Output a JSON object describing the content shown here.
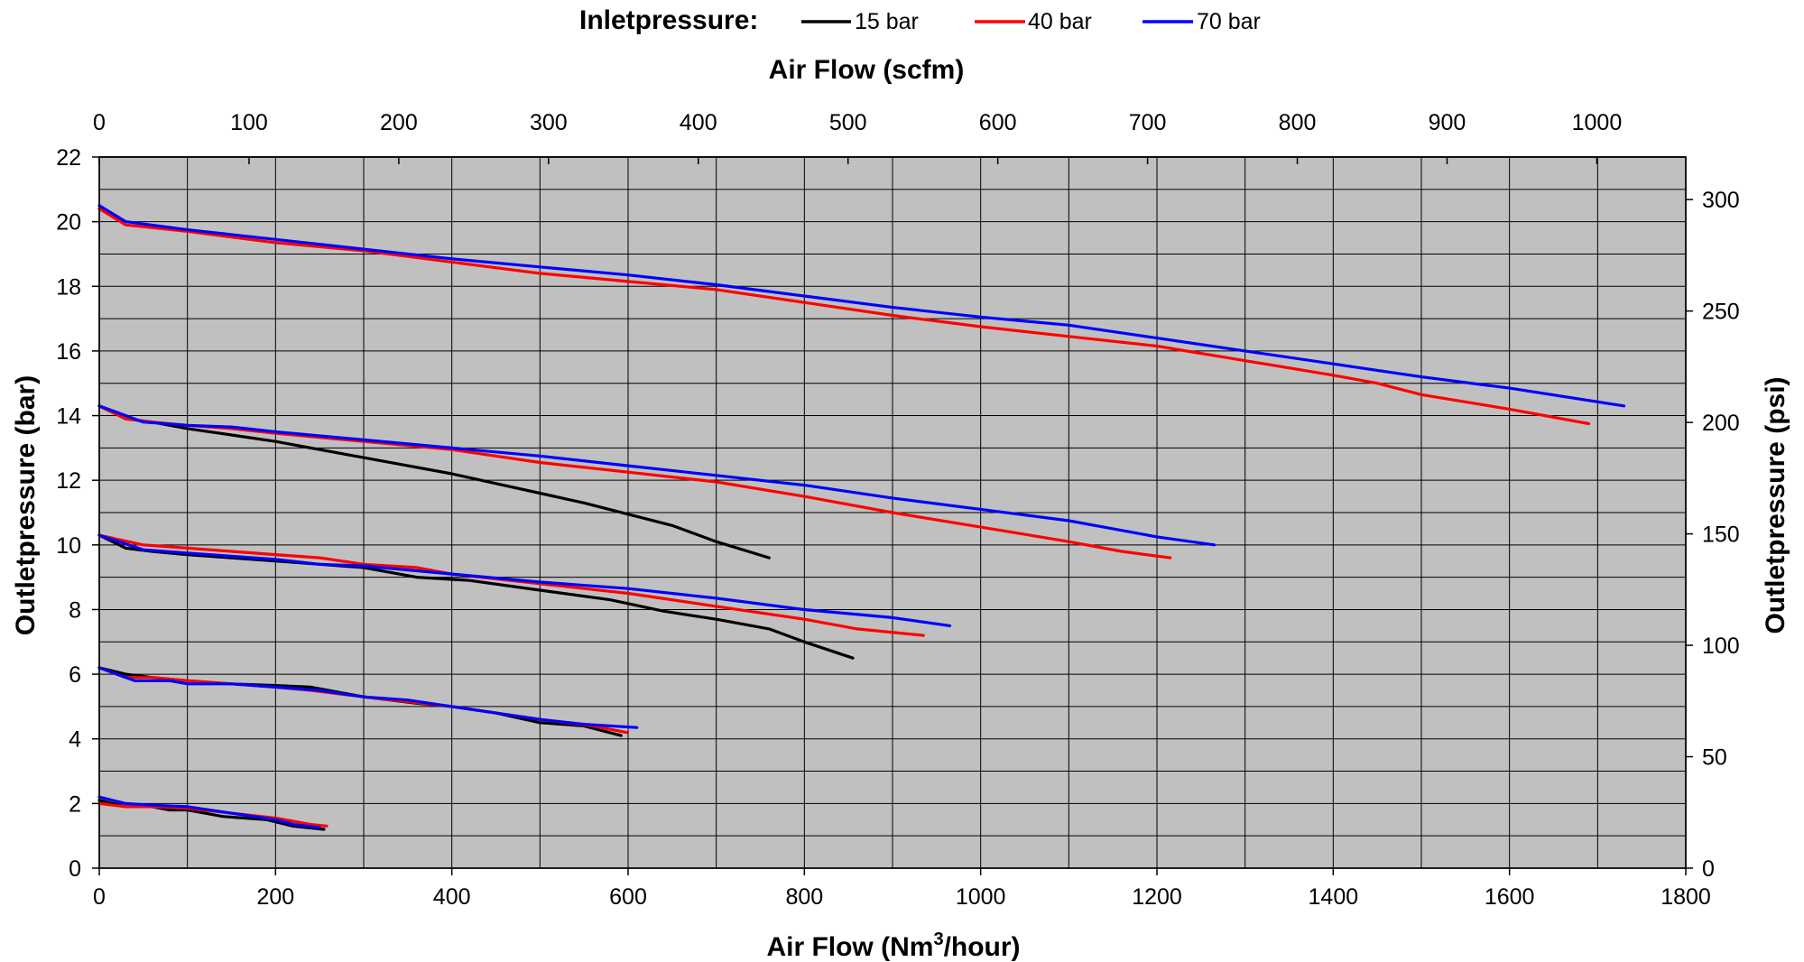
{
  "chart_data": {
    "type": "line",
    "legend": {
      "title": "Inletpressure:",
      "placement": "top-center",
      "entries": [
        {
          "label": "15 bar",
          "color": "#000000"
        },
        {
          "label": "40 bar",
          "color": "#ff0000"
        },
        {
          "label": "70 bar",
          "color": "#0000ff"
        }
      ]
    },
    "x_bottom": {
      "label_pre": "Air Flow (Nm",
      "label_sup": "3",
      "label_post": "/hour)",
      "range": [
        0,
        1800
      ],
      "ticks": [
        "0",
        "200",
        "400",
        "600",
        "800",
        "1000",
        "1200",
        "1400",
        "1600",
        "1800"
      ]
    },
    "x_top": {
      "label": "Air Flow (scfm)",
      "range": [
        0,
        1059.4
      ],
      "ticks": [
        "0",
        "100",
        "200",
        "300",
        "400",
        "500",
        "600",
        "700",
        "800",
        "900",
        "1000"
      ]
    },
    "y_left": {
      "label": "Outletpressure (bar)",
      "range": [
        0,
        22
      ],
      "ticks": [
        "0",
        "2",
        "4",
        "6",
        "8",
        "10",
        "12",
        "14",
        "16",
        "18",
        "20",
        "22"
      ]
    },
    "y_right": {
      "label": "Outletpressure (psi)",
      "range": [
        0,
        319.1
      ],
      "ticks": [
        "0",
        "50",
        "100",
        "150",
        "200",
        "250",
        "300"
      ]
    },
    "grid": true,
    "plot_background": "#c0c0c0",
    "series": [
      {
        "name": "15 bar",
        "color": "#000000",
        "points": [
          [
            0,
            2.1
          ],
          [
            30,
            1.9
          ],
          [
            60,
            1.9
          ],
          [
            80,
            1.8
          ],
          [
            100,
            1.8
          ],
          [
            140,
            1.6
          ],
          [
            190,
            1.5
          ],
          [
            220,
            1.3
          ],
          [
            255,
            1.2
          ]
        ]
      },
      {
        "name": "40 bar",
        "color": "#ff0000",
        "points": [
          [
            0,
            2.0
          ],
          [
            30,
            1.9
          ],
          [
            60,
            1.9
          ],
          [
            100,
            1.85
          ],
          [
            150,
            1.7
          ],
          [
            200,
            1.55
          ],
          [
            240,
            1.35
          ],
          [
            258,
            1.3
          ]
        ]
      },
      {
        "name": "70 bar",
        "color": "#0000ff",
        "points": [
          [
            0,
            2.2
          ],
          [
            30,
            2.0
          ],
          [
            60,
            1.95
          ],
          [
            100,
            1.9
          ],
          [
            150,
            1.7
          ],
          [
            200,
            1.5
          ],
          [
            220,
            1.35
          ],
          [
            250,
            1.25
          ]
        ]
      },
      {
        "name": "15 bar",
        "color": "#000000",
        "points": [
          [
            0,
            6.2
          ],
          [
            30,
            6.0
          ],
          [
            60,
            5.9
          ],
          [
            100,
            5.8
          ],
          [
            150,
            5.7
          ],
          [
            200,
            5.65
          ],
          [
            240,
            5.6
          ],
          [
            300,
            5.3
          ],
          [
            360,
            5.1
          ],
          [
            400,
            5.0
          ],
          [
            450,
            4.8
          ],
          [
            500,
            4.5
          ],
          [
            550,
            4.4
          ],
          [
            592,
            4.1
          ]
        ]
      },
      {
        "name": "40 bar",
        "color": "#ff0000",
        "points": [
          [
            0,
            6.2
          ],
          [
            30,
            5.9
          ],
          [
            60,
            5.9
          ],
          [
            100,
            5.8
          ],
          [
            150,
            5.7
          ],
          [
            200,
            5.6
          ],
          [
            240,
            5.5
          ],
          [
            300,
            5.3
          ],
          [
            400,
            5.0
          ],
          [
            500,
            4.6
          ],
          [
            560,
            4.4
          ],
          [
            598,
            4.2
          ]
        ]
      },
      {
        "name": "70 bar",
        "color": "#0000ff",
        "points": [
          [
            0,
            6.2
          ],
          [
            40,
            5.8
          ],
          [
            80,
            5.8
          ],
          [
            100,
            5.7
          ],
          [
            150,
            5.7
          ],
          [
            200,
            5.6
          ],
          [
            250,
            5.5
          ],
          [
            300,
            5.3
          ],
          [
            350,
            5.2
          ],
          [
            400,
            5.0
          ],
          [
            450,
            4.8
          ],
          [
            500,
            4.6
          ],
          [
            550,
            4.45
          ],
          [
            610,
            4.35
          ]
        ]
      },
      {
        "name": "15 bar",
        "color": "#000000",
        "points": [
          [
            0,
            10.3
          ],
          [
            30,
            9.9
          ],
          [
            60,
            9.8
          ],
          [
            100,
            9.7
          ],
          [
            150,
            9.6
          ],
          [
            200,
            9.5
          ],
          [
            250,
            9.4
          ],
          [
            300,
            9.3
          ],
          [
            360,
            9.0
          ],
          [
            420,
            8.9
          ],
          [
            500,
            8.6
          ],
          [
            580,
            8.3
          ],
          [
            640,
            7.95
          ],
          [
            700,
            7.7
          ],
          [
            760,
            7.4
          ],
          [
            800,
            7.0
          ],
          [
            855,
            6.5
          ]
        ]
      },
      {
        "name": "40 bar",
        "color": "#ff0000",
        "points": [
          [
            0,
            10.3
          ],
          [
            50,
            10.0
          ],
          [
            100,
            9.9
          ],
          [
            150,
            9.8
          ],
          [
            200,
            9.7
          ],
          [
            250,
            9.6
          ],
          [
            300,
            9.4
          ],
          [
            360,
            9.3
          ],
          [
            400,
            9.1
          ],
          [
            500,
            8.8
          ],
          [
            600,
            8.5
          ],
          [
            700,
            8.1
          ],
          [
            800,
            7.7
          ],
          [
            860,
            7.4
          ],
          [
            935,
            7.2
          ]
        ]
      },
      {
        "name": "70 bar",
        "color": "#0000ff",
        "points": [
          [
            0,
            10.3
          ],
          [
            50,
            9.85
          ],
          [
            100,
            9.75
          ],
          [
            150,
            9.65
          ],
          [
            200,
            9.55
          ],
          [
            250,
            9.4
          ],
          [
            300,
            9.35
          ],
          [
            400,
            9.1
          ],
          [
            500,
            8.85
          ],
          [
            600,
            8.65
          ],
          [
            700,
            8.35
          ],
          [
            800,
            8.0
          ],
          [
            900,
            7.75
          ],
          [
            965,
            7.5
          ]
        ]
      },
      {
        "name": "15 bar",
        "color": "#000000",
        "points": [
          [
            0,
            14.3
          ],
          [
            30,
            13.9
          ],
          [
            60,
            13.8
          ],
          [
            100,
            13.6
          ],
          [
            150,
            13.4
          ],
          [
            200,
            13.2
          ],
          [
            250,
            12.95
          ],
          [
            300,
            12.7
          ],
          [
            400,
            12.2
          ],
          [
            450,
            11.9
          ],
          [
            500,
            11.6
          ],
          [
            550,
            11.3
          ],
          [
            600,
            10.95
          ],
          [
            650,
            10.6
          ],
          [
            700,
            10.1
          ],
          [
            760,
            9.6
          ]
        ]
      },
      {
        "name": "40 bar",
        "color": "#ff0000",
        "points": [
          [
            0,
            14.3
          ],
          [
            30,
            13.9
          ],
          [
            60,
            13.8
          ],
          [
            100,
            13.7
          ],
          [
            150,
            13.6
          ],
          [
            200,
            13.45
          ],
          [
            300,
            13.2
          ],
          [
            400,
            12.95
          ],
          [
            500,
            12.55
          ],
          [
            600,
            12.25
          ],
          [
            700,
            11.95
          ],
          [
            800,
            11.5
          ],
          [
            900,
            11.0
          ],
          [
            1000,
            10.55
          ],
          [
            1100,
            10.1
          ],
          [
            1160,
            9.8
          ],
          [
            1215,
            9.6
          ]
        ]
      },
      {
        "name": "70 bar",
        "color": "#0000ff",
        "points": [
          [
            0,
            14.3
          ],
          [
            30,
            14.0
          ],
          [
            50,
            13.8
          ],
          [
            100,
            13.7
          ],
          [
            150,
            13.65
          ],
          [
            200,
            13.5
          ],
          [
            300,
            13.25
          ],
          [
            400,
            13.0
          ],
          [
            500,
            12.75
          ],
          [
            600,
            12.45
          ],
          [
            700,
            12.15
          ],
          [
            800,
            11.85
          ],
          [
            900,
            11.45
          ],
          [
            1000,
            11.1
          ],
          [
            1100,
            10.75
          ],
          [
            1150,
            10.5
          ],
          [
            1200,
            10.25
          ],
          [
            1265,
            10.0
          ]
        ]
      },
      {
        "name": "15 bar",
        "color": "#000000",
        "points": []
      },
      {
        "name": "40 bar",
        "color": "#ff0000",
        "points": [
          [
            0,
            20.4
          ],
          [
            30,
            19.9
          ],
          [
            100,
            19.7
          ],
          [
            200,
            19.35
          ],
          [
            300,
            19.1
          ],
          [
            400,
            18.75
          ],
          [
            500,
            18.4
          ],
          [
            600,
            18.15
          ],
          [
            700,
            17.9
          ],
          [
            800,
            17.5
          ],
          [
            900,
            17.1
          ],
          [
            1000,
            16.75
          ],
          [
            1100,
            16.45
          ],
          [
            1200,
            16.15
          ],
          [
            1300,
            15.7
          ],
          [
            1400,
            15.25
          ],
          [
            1450,
            15.0
          ],
          [
            1500,
            14.65
          ],
          [
            1600,
            14.2
          ],
          [
            1690,
            13.75
          ]
        ]
      },
      {
        "name": "70 bar",
        "color": "#0000ff",
        "points": [
          [
            0,
            20.5
          ],
          [
            30,
            20.0
          ],
          [
            100,
            19.75
          ],
          [
            200,
            19.45
          ],
          [
            300,
            19.15
          ],
          [
            400,
            18.85
          ],
          [
            500,
            18.6
          ],
          [
            600,
            18.35
          ],
          [
            700,
            18.05
          ],
          [
            800,
            17.7
          ],
          [
            900,
            17.35
          ],
          [
            1000,
            17.05
          ],
          [
            1100,
            16.8
          ],
          [
            1200,
            16.4
          ],
          [
            1300,
            16.0
          ],
          [
            1400,
            15.6
          ],
          [
            1500,
            15.2
          ],
          [
            1600,
            14.85
          ],
          [
            1730,
            14.3
          ]
        ]
      }
    ]
  }
}
